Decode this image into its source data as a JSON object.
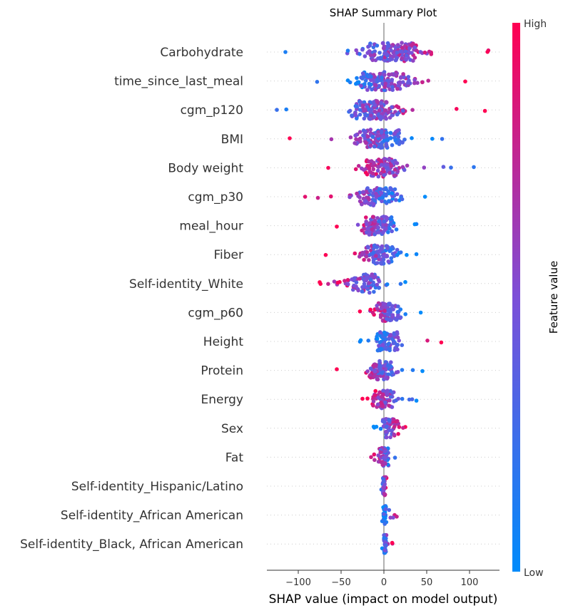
{
  "chart_data": {
    "type": "scatter",
    "subtype": "shap-beeswarm",
    "title": "SHAP Summary Plot",
    "xlabel": "SHAP value (impact on model output)",
    "xlim": [
      -135,
      133
    ],
    "xticks": [
      -100,
      -50,
      0,
      50,
      100
    ],
    "xtick_labels": [
      "−100",
      "−50",
      "0",
      "50",
      "100"
    ],
    "grid": false,
    "colorbar": {
      "title": "Feature value",
      "high_label": "High",
      "low_label": "Low",
      "low_color": "#008bfb",
      "mid_color": "#7c4fd8",
      "high_color": "#ff0052"
    },
    "features": [
      {
        "name": "Carbohydrate",
        "min": -115,
        "max": 122,
        "core": [
          -55,
          75
        ],
        "trend": 1,
        "n": 150
      },
      {
        "name": "time_since_last_meal",
        "min": -78,
        "max": 95,
        "core": [
          -60,
          60
        ],
        "trend": 1,
        "n": 130
      },
      {
        "name": "cgm_p120",
        "min": -125,
        "max": 118,
        "core": [
          -60,
          40
        ],
        "trend": 1,
        "n": 140
      },
      {
        "name": "BMI",
        "min": -110,
        "max": 68,
        "core": [
          -60,
          45
        ],
        "trend": -1,
        "n": 130
      },
      {
        "name": "Body weight",
        "min": -65,
        "max": 105,
        "core": [
          -45,
          40
        ],
        "trend": -1,
        "n": 110
      },
      {
        "name": "cgm_p30",
        "min": -92,
        "max": 48,
        "core": [
          -50,
          35
        ],
        "trend": -1,
        "n": 110
      },
      {
        "name": "meal_hour",
        "min": -55,
        "max": 38,
        "core": [
          -45,
          30
        ],
        "trend": -1,
        "n": 100
      },
      {
        "name": "Fiber",
        "min": -68,
        "max": 38,
        "core": [
          -45,
          35
        ],
        "trend": -1,
        "n": 100
      },
      {
        "name": "Self-identity_White",
        "min": -75,
        "max": 25,
        "core": [
          -75,
          25
        ],
        "trend": -1,
        "n": 80
      },
      {
        "name": "cgm_p60",
        "min": -28,
        "max": 43,
        "core": [
          -25,
          30
        ],
        "trend": -1,
        "n": 100
      },
      {
        "name": "Height",
        "min": -28,
        "max": 67,
        "core": [
          -20,
          30
        ],
        "trend": 1,
        "n": 90
      },
      {
        "name": "Protein",
        "min": -55,
        "max": 45,
        "core": [
          -40,
          30
        ],
        "trend": -1,
        "n": 90
      },
      {
        "name": "Energy",
        "min": -25,
        "max": 38,
        "core": [
          -25,
          25
        ],
        "trend": -1,
        "n": 80
      },
      {
        "name": "Sex",
        "min": -12,
        "max": 25,
        "core": [
          -12,
          25
        ],
        "trend": 1,
        "n": 60
      },
      {
        "name": "Fat",
        "min": -15,
        "max": 13,
        "core": [
          -10,
          10
        ],
        "trend": -1,
        "n": 50
      },
      {
        "name": "Self-identity_Hispanic/Latino",
        "min": -3,
        "max": 3,
        "core": [
          -3,
          3
        ],
        "trend": 1,
        "n": 40
      },
      {
        "name": "Self-identity_African American",
        "min": -2,
        "max": 15,
        "core": [
          -2,
          4
        ],
        "trend": 1,
        "n": 35
      },
      {
        "name": "Self-identity_Black, African American",
        "min": -2,
        "max": 10,
        "core": [
          -2,
          4
        ],
        "trend": 1,
        "n": 35
      }
    ]
  }
}
